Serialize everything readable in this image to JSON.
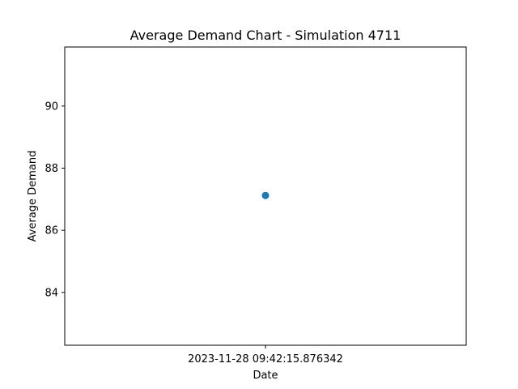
{
  "chart_data": {
    "type": "scatter",
    "title": "Average Demand Chart - Simulation 4711",
    "xlabel": "Date",
    "ylabel": "Average Demand",
    "x": [
      "2023-11-28 09:42:15.876342"
    ],
    "y": [
      87.12
    ],
    "ylim": [
      82.3,
      91.9
    ],
    "yticks": [
      84,
      86,
      88,
      90
    ],
    "ytick_labels": [
      "84",
      "86",
      "88",
      "90"
    ],
    "xtick_labels": [
      "2023-11-28 09:42:15.876342"
    ],
    "marker_color": "#1f77b4",
    "grid": false
  }
}
